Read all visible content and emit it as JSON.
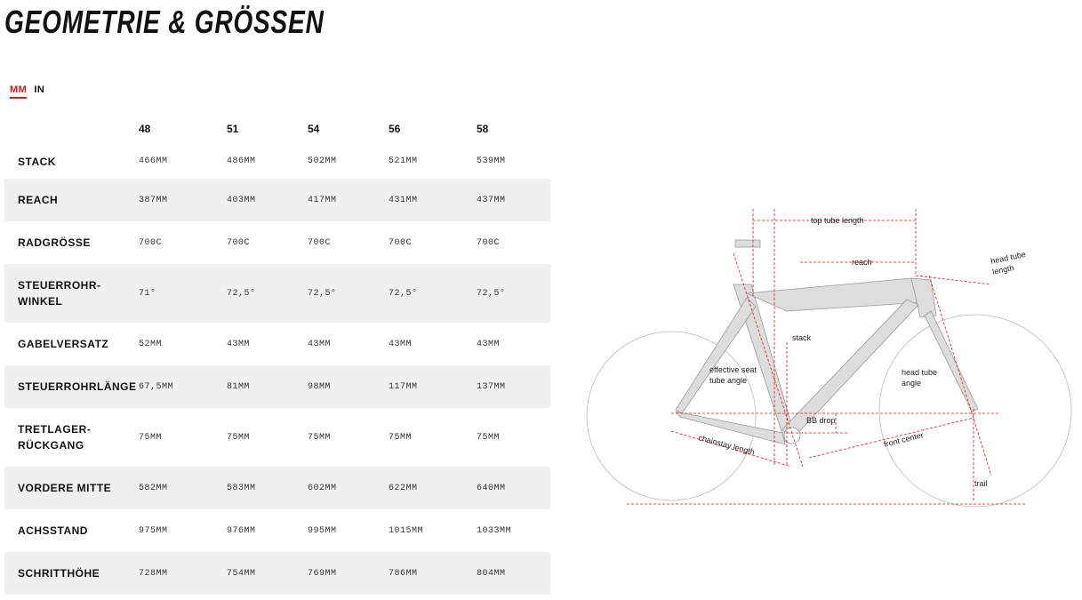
{
  "header": {
    "title": "GEOMETRIE & GRÖSSEN"
  },
  "units": [
    "MM",
    "IN"
  ],
  "table": {
    "sizes": [
      "48",
      "51",
      "54",
      "56",
      "58"
    ],
    "rows": [
      {
        "label": "STACK",
        "values": [
          "466MM",
          "486MM",
          "502MM",
          "521MM",
          "539MM"
        ]
      },
      {
        "label": "REACH",
        "values": [
          "387MM",
          "403MM",
          "417MM",
          "431MM",
          "437MM"
        ]
      },
      {
        "label": "RADGRÖSSE",
        "values": [
          "700C",
          "700C",
          "700C",
          "700C",
          "700C"
        ]
      },
      {
        "label": "STEUERROHR-\nWINKEL",
        "values": [
          "71°",
          "72,5°",
          "72,5°",
          "72,5°",
          "72,5°"
        ]
      },
      {
        "label": "GABELVERSATZ",
        "values": [
          "52MM",
          "43MM",
          "43MM",
          "43MM",
          "43MM"
        ]
      },
      {
        "label": "STEUERROHRLÄNGE",
        "values": [
          "67,5MM",
          "81MM",
          "98MM",
          "117MM",
          "137MM"
        ]
      },
      {
        "label": "TRETLAGER-\nRÜCKGANG",
        "values": [
          "75MM",
          "75MM",
          "75MM",
          "75MM",
          "75MM"
        ]
      },
      {
        "label": "VORDERE MITTE",
        "values": [
          "582MM",
          "583MM",
          "602MM",
          "622MM",
          "640MM"
        ]
      },
      {
        "label": "ACHSSTAND",
        "values": [
          "975MM",
          "976MM",
          "995MM",
          "1015MM",
          "1033MM"
        ]
      },
      {
        "label": "SCHRITTHÖHE",
        "values": [
          "728MM",
          "754MM",
          "769MM",
          "786MM",
          "804MM"
        ]
      }
    ]
  },
  "diagram": {
    "labels": {
      "top_tube_length": "top tube length",
      "reach": "reach",
      "head_tube_length": [
        "head tube",
        "length"
      ],
      "stack": "stack",
      "seat_tube_angle": [
        "effective seat",
        "tube angle"
      ],
      "head_tube_angle": [
        "head tube",
        "angle"
      ],
      "bb_drop": "BB drop",
      "chainstay_length": "chainstay length",
      "front_center": "front center",
      "trail": "trail"
    }
  }
}
